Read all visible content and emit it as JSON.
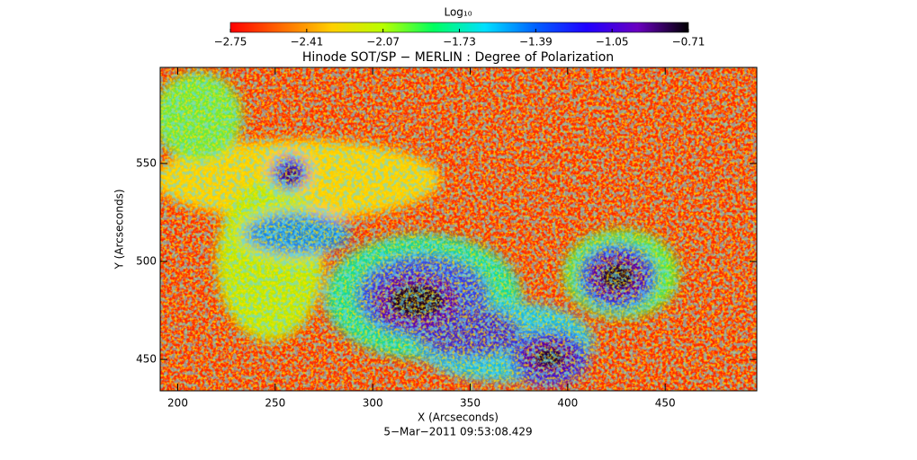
{
  "chart_data": {
    "type": "heatmap",
    "title": "Hinode SOT/SP − MERLIN : Degree of Polarization",
    "x_label": "X (Arcseconds)",
    "y_label": "Y (Arcseconds)",
    "date": "5−Mar−2011 09:53:08.429",
    "colorbar": {
      "label": "Log₁₀",
      "lim": [
        -2.75,
        -0.71
      ],
      "ticks": [
        {
          "value": -2.75,
          "label": "−2.75"
        },
        {
          "value": -2.41,
          "label": "−2.41"
        },
        {
          "value": -2.07,
          "label": "−2.07"
        },
        {
          "value": -1.73,
          "label": "−1.73"
        },
        {
          "value": -1.39,
          "label": "−1.39"
        },
        {
          "value": -1.05,
          "label": "−1.05"
        },
        {
          "value": -0.71,
          "label": "−0.71"
        }
      ],
      "colors": [
        "#ff0000",
        "#ff6a00",
        "#ffd000",
        "#b8ff00",
        "#00ff60",
        "#00e0ff",
        "#0060ff",
        "#2000ff",
        "#6a00c0",
        "#000000"
      ]
    },
    "xlim": [
      191,
      497
    ],
    "ylim": [
      434,
      599
    ],
    "xticks": [
      200,
      250,
      300,
      350,
      400,
      450
    ],
    "yticks": [
      450,
      500,
      550
    ]
  }
}
